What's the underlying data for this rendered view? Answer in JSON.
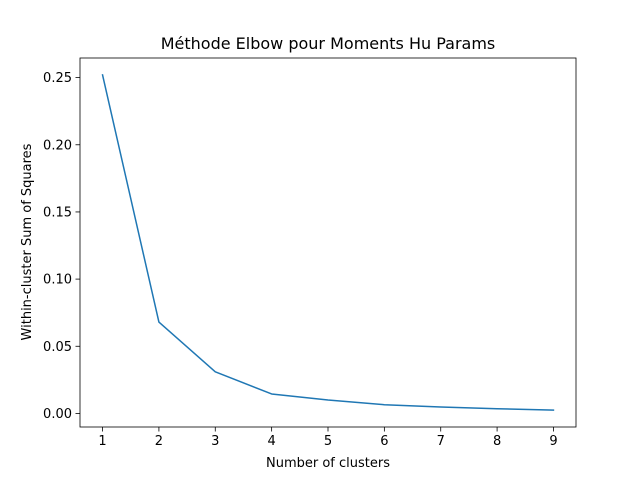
{
  "chart_data": {
    "type": "line",
    "title": "Méthode Elbow pour Moments Hu Params",
    "xlabel": "Number of clusters",
    "ylabel": "Within-cluster Sum of Squares",
    "x": [
      1,
      2,
      3,
      4,
      5,
      6,
      7,
      8,
      9
    ],
    "series": [
      {
        "values": [
          0.252,
          0.068,
          0.031,
          0.0145,
          0.01,
          0.0065,
          0.0048,
          0.0035,
          0.0025
        ],
        "color": "#1f77b4"
      }
    ],
    "xlim": [
      0.6,
      9.4
    ],
    "ylim": [
      -0.0101,
      0.2646
    ],
    "xticks": [
      "1",
      "2",
      "3",
      "4",
      "5",
      "6",
      "7",
      "8",
      "9"
    ],
    "yticks": [
      "0.00",
      "0.05",
      "0.10",
      "0.15",
      "0.20",
      "0.25"
    ],
    "grid": false,
    "legend": "none"
  }
}
